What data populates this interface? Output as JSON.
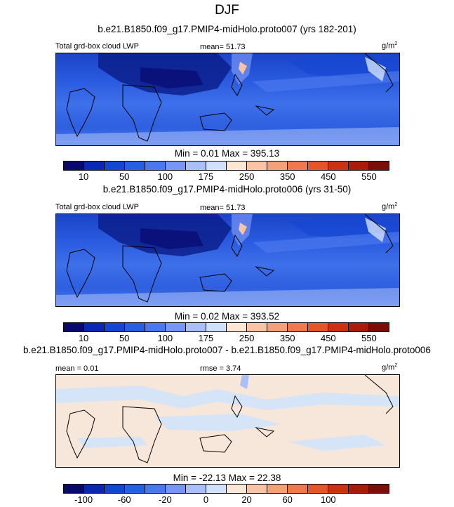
{
  "title": "DJF",
  "panels": [
    {
      "case": "b.e21.B1850.f09_g17.PMIP4-midHolo.proto007 (yrs 182-201)",
      "left_label": "Total grd-box cloud LWP",
      "center_label": "mean=  51.73",
      "units_base": "g/m",
      "units_exp": "2",
      "minmax": "Min =   0.01 Max = 395.13",
      "tick_labels": [
        "10",
        "50",
        "100",
        "175",
        "250",
        "350",
        "450",
        "550"
      ]
    },
    {
      "case": "b.e21.B1850.f09_g17.PMIP4-midHolo.proto006 (yrs 31-50)",
      "left_label": "Total grd-box cloud LWP",
      "center_label": "mean=  51.73",
      "units_base": "g/m",
      "units_exp": "2",
      "minmax": "Min =   0.02 Max = 393.52",
      "tick_labels": [
        "10",
        "50",
        "100",
        "175",
        "250",
        "350",
        "450",
        "550"
      ]
    },
    {
      "case": "b.e21.B1850.f09_g17.PMIP4-midHolo.proto007 - b.e21.B1850.f09_g17.PMIP4-midHolo.proto006",
      "left_label": "mean =  0.01",
      "center_label": "rmse =  3.74",
      "units_base": "g/m",
      "units_exp": "2",
      "minmax": "Min = -22.13 Max =  22.38",
      "tick_labels": [
        "-100",
        "-60",
        "-20",
        "0",
        "20",
        "60",
        "100"
      ]
    }
  ],
  "colormaps": {
    "lwp": [
      "#08086e",
      "#0a28b4",
      "#1446d2",
      "#285fe0",
      "#4b78ee",
      "#7896f5",
      "#aabff8",
      "#d2e1fb",
      "#fce6d4",
      "#f9c4a6",
      "#f5a07a",
      "#f0784e",
      "#e45528",
      "#cc3210",
      "#aa1c0a",
      "#7c0e0a"
    ],
    "diff": [
      "#08086e",
      "#0a28b4",
      "#1446d2",
      "#285fe0",
      "#4b78ee",
      "#7896f5",
      "#aabff8",
      "#d2e1fb",
      "#fce6d4",
      "#f9c4a6",
      "#f5a07a",
      "#f0784e",
      "#e45528",
      "#cc3210",
      "#aa1c0a",
      "#7c0e0a"
    ]
  }
}
